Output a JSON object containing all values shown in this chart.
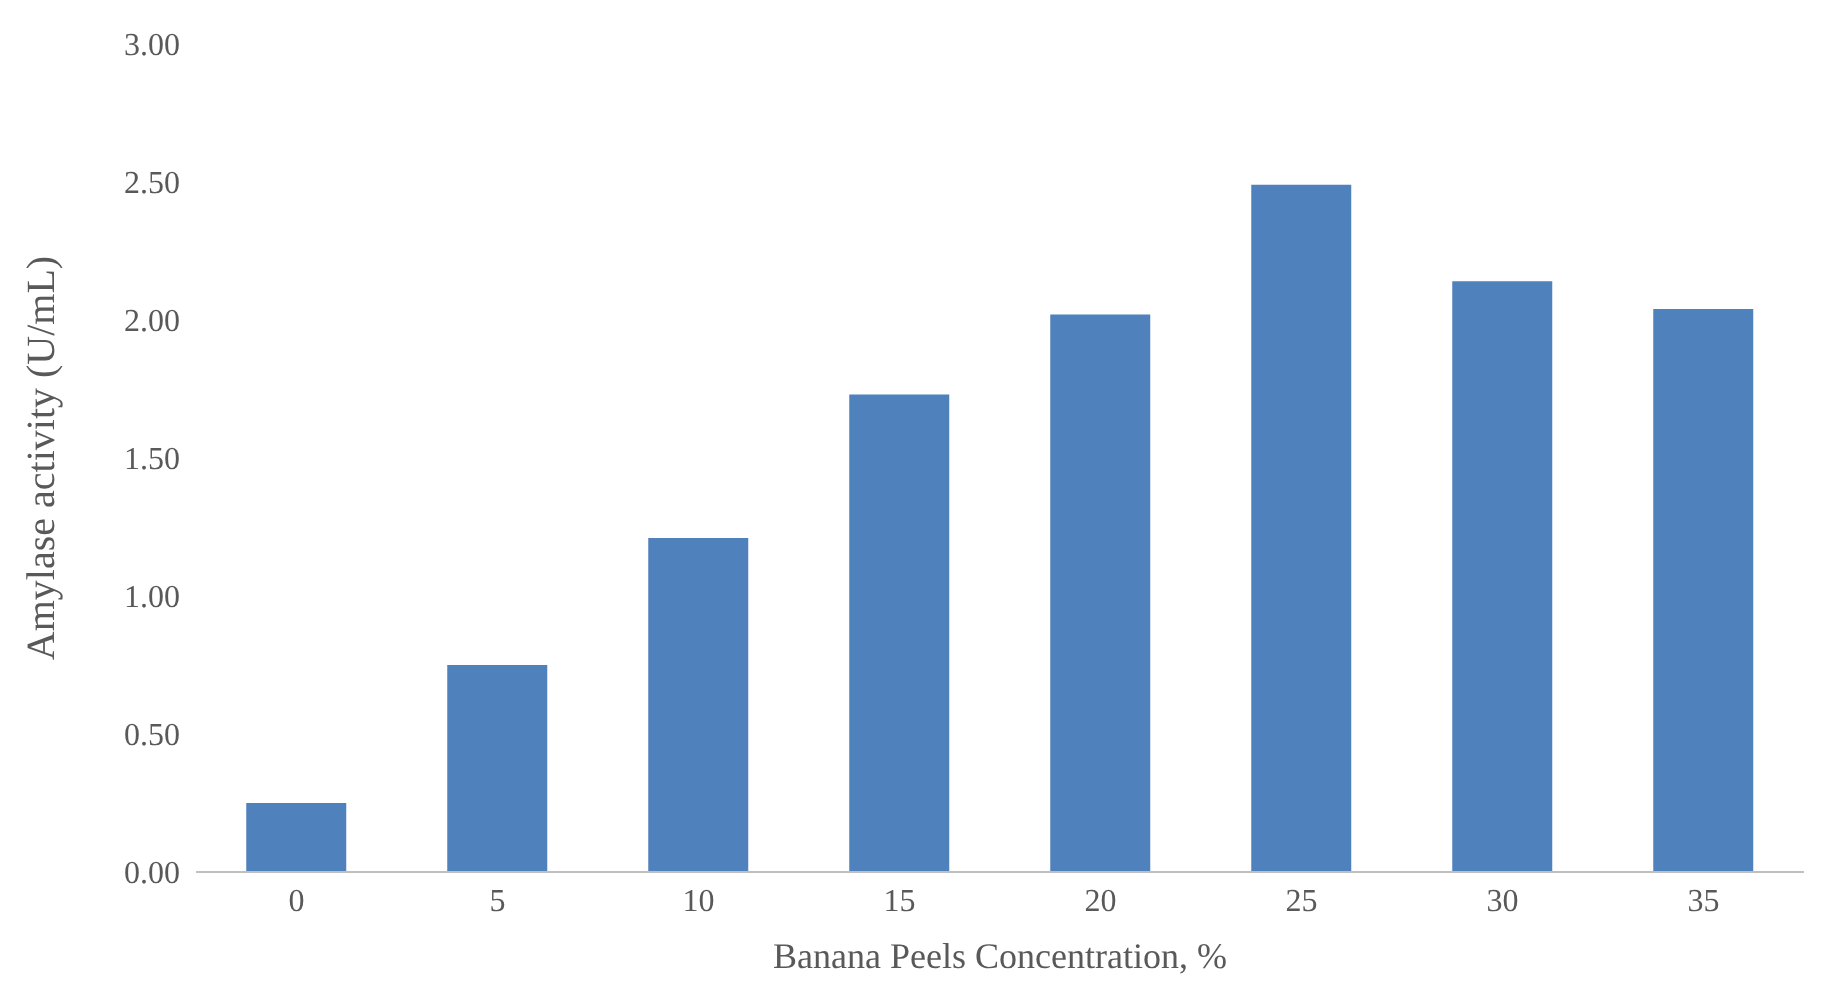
{
  "chart_data": {
    "type": "bar",
    "xlabel": "Banana Peels Concentration, %",
    "ylabel": "Amylase activity (U/mL)",
    "categories": [
      "0",
      "5",
      "10",
      "15",
      "20",
      "25",
      "30",
      "35"
    ],
    "values": [
      0.25,
      0.75,
      1.21,
      1.73,
      2.02,
      2.49,
      2.14,
      2.04
    ],
    "color": "#4f81bd",
    "ylim": [
      0,
      3
    ],
    "yticks": [
      {
        "value": 0,
        "label": "0.00"
      },
      {
        "value": 0.5,
        "label": "0.50"
      },
      {
        "value": 1,
        "label": "1.00"
      },
      {
        "value": 1.5,
        "label": "1.50"
      },
      {
        "value": 2,
        "label": "2.00"
      },
      {
        "value": 2.5,
        "label": "2.50"
      },
      {
        "value": 3,
        "label": "3.00"
      }
    ],
    "grid": false
  }
}
